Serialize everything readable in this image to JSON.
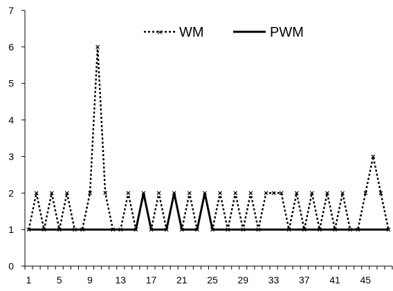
{
  "chart_data": {
    "type": "line",
    "title": "",
    "xlabel": "",
    "ylabel": "",
    "ylim": [
      0,
      7
    ],
    "y_ticks": [
      "0",
      "1",
      "2",
      "3",
      "4",
      "5",
      "6",
      "7"
    ],
    "x_ticks": [
      "1",
      "5",
      "9",
      "13",
      "17",
      "21",
      "25",
      "29",
      "33",
      "37",
      "41",
      "45"
    ],
    "grid": false,
    "legend_position": "top-center",
    "x": [
      1,
      2,
      3,
      4,
      5,
      6,
      7,
      8,
      9,
      10,
      11,
      12,
      13,
      14,
      15,
      16,
      17,
      18,
      19,
      20,
      21,
      22,
      23,
      24,
      25,
      26,
      27,
      28,
      29,
      30,
      31,
      32,
      33,
      34,
      35,
      36,
      37,
      38,
      39,
      40,
      41,
      42,
      43,
      44,
      45,
      46,
      47,
      48
    ],
    "series": [
      {
        "name": "WM",
        "style": "dotted-x",
        "color": "#000000",
        "values": [
          1,
          2,
          1,
          2,
          1,
          2,
          1,
          1,
          2,
          6,
          2,
          1,
          1,
          2,
          1,
          2,
          1,
          2,
          1,
          2,
          1,
          2,
          1,
          2,
          1,
          2,
          1,
          2,
          1,
          2,
          1,
          2,
          2,
          2,
          1,
          2,
          1,
          2,
          1,
          2,
          1,
          2,
          1,
          1,
          2,
          3,
          2,
          1
        ]
      },
      {
        "name": "PWM",
        "style": "solid",
        "color": "#000000",
        "values": [
          1,
          1,
          1,
          1,
          1,
          1,
          1,
          1,
          1,
          1,
          1,
          1,
          1,
          1,
          1,
          2,
          1,
          1,
          1,
          2,
          1,
          1,
          1,
          2,
          1,
          1,
          1,
          1,
          1,
          1,
          1,
          1,
          1,
          1,
          1,
          1,
          1,
          1,
          1,
          1,
          1,
          1,
          1,
          1,
          1,
          1,
          1,
          1
        ]
      }
    ]
  }
}
